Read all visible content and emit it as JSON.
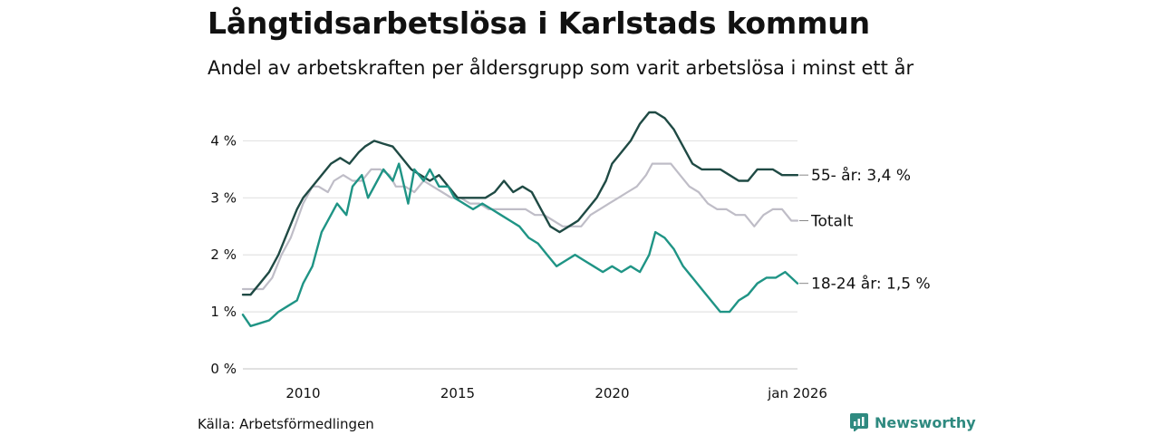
{
  "header": {
    "title": "Långtidsarbetslösa i Karlstads kommun",
    "subtitle": "Andel av arbetskraften per åldersgrupp som varit arbetslösa i minst ett år"
  },
  "footer": {
    "source": "Källa: Arbetsförmedlingen",
    "brand": "Newsworthy",
    "brand_icon": "newsworthy-logo-icon",
    "brand_color": "#2f8a80"
  },
  "chart_data": {
    "type": "line",
    "title": "Långtidsarbetslösa i Karlstads kommun",
    "xlabel": "",
    "ylabel": "",
    "xlim": [
      2008.05,
      2026.0
    ],
    "ylim": [
      0,
      4.5
    ],
    "grid": true,
    "y_ticks": [
      {
        "value": 0,
        "label": "0 %"
      },
      {
        "value": 1,
        "label": "1 %"
      },
      {
        "value": 2,
        "label": "2 %"
      },
      {
        "value": 3,
        "label": "3 %"
      },
      {
        "value": 4,
        "label": "4 %"
      }
    ],
    "x_ticks": [
      {
        "value": 2010,
        "label": "2010"
      },
      {
        "value": 2015,
        "label": "2015"
      },
      {
        "value": 2020,
        "label": "2020"
      },
      {
        "value": 2026,
        "label": "jan 2026"
      }
    ],
    "series": [
      {
        "name": "Totalt",
        "label": "Totalt",
        "color": "#bfbdc7",
        "x": [
          2008.05,
          2008.4,
          2008.7,
          2009.0,
          2009.3,
          2009.6,
          2009.8,
          2010.0,
          2010.3,
          2010.5,
          2010.8,
          2011.0,
          2011.3,
          2011.6,
          2011.9,
          2012.2,
          2012.5,
          2012.8,
          2013.0,
          2013.3,
          2013.6,
          2013.9,
          2014.2,
          2014.5,
          2014.8,
          2015.1,
          2015.4,
          2015.7,
          2016.0,
          2016.3,
          2016.6,
          2016.9,
          2017.2,
          2017.5,
          2017.8,
          2018.1,
          2018.4,
          2018.7,
          2019.0,
          2019.3,
          2019.6,
          2019.9,
          2020.2,
          2020.5,
          2020.8,
          2021.1,
          2021.3,
          2021.6,
          2021.9,
          2022.2,
          2022.5,
          2022.8,
          2023.1,
          2023.4,
          2023.7,
          2024.0,
          2024.3,
          2024.6,
          2024.9,
          2025.2,
          2025.5,
          2025.8,
          2026.0
        ],
        "values": [
          1.4,
          1.4,
          1.4,
          1.6,
          2.0,
          2.3,
          2.6,
          2.9,
          3.2,
          3.2,
          3.1,
          3.3,
          3.4,
          3.3,
          3.3,
          3.5,
          3.5,
          3.4,
          3.2,
          3.2,
          3.1,
          3.3,
          3.2,
          3.1,
          3.0,
          3.0,
          2.9,
          2.9,
          2.8,
          2.8,
          2.8,
          2.8,
          2.8,
          2.7,
          2.7,
          2.6,
          2.5,
          2.5,
          2.5,
          2.7,
          2.8,
          2.9,
          3.0,
          3.1,
          3.2,
          3.4,
          3.6,
          3.6,
          3.6,
          3.4,
          3.2,
          3.1,
          2.9,
          2.8,
          2.8,
          2.7,
          2.7,
          2.5,
          2.7,
          2.8,
          2.8,
          2.6,
          2.6
        ]
      },
      {
        "name": "55- år",
        "label": "55- år: 3,4 %",
        "color": "#1f4a44",
        "x": [
          2008.05,
          2008.3,
          2008.6,
          2008.9,
          2009.2,
          2009.5,
          2009.8,
          2010.0,
          2010.3,
          2010.6,
          2010.9,
          2011.2,
          2011.5,
          2011.8,
          2012.0,
          2012.3,
          2012.6,
          2012.9,
          2013.2,
          2013.5,
          2013.8,
          2014.1,
          2014.4,
          2014.7,
          2015.0,
          2015.3,
          2015.6,
          2015.9,
          2016.2,
          2016.5,
          2016.8,
          2017.1,
          2017.4,
          2017.7,
          2018.0,
          2018.3,
          2018.6,
          2018.9,
          2019.2,
          2019.5,
          2019.8,
          2020.0,
          2020.3,
          2020.6,
          2020.9,
          2021.2,
          2021.4,
          2021.7,
          2022.0,
          2022.3,
          2022.6,
          2022.9,
          2023.2,
          2023.5,
          2023.8,
          2024.1,
          2024.4,
          2024.7,
          2025.0,
          2025.2,
          2025.5,
          2025.8,
          2026.0
        ],
        "values": [
          1.3,
          1.3,
          1.5,
          1.7,
          2.0,
          2.4,
          2.8,
          3.0,
          3.2,
          3.4,
          3.6,
          3.7,
          3.6,
          3.8,
          3.9,
          4.0,
          3.95,
          3.9,
          3.7,
          3.5,
          3.4,
          3.3,
          3.4,
          3.2,
          3.0,
          3.0,
          3.0,
          3.0,
          3.1,
          3.3,
          3.1,
          3.2,
          3.1,
          2.8,
          2.5,
          2.4,
          2.5,
          2.6,
          2.8,
          3.0,
          3.3,
          3.6,
          3.8,
          4.0,
          4.3,
          4.5,
          4.5,
          4.4,
          4.2,
          3.9,
          3.6,
          3.5,
          3.5,
          3.5,
          3.4,
          3.3,
          3.3,
          3.5,
          3.5,
          3.5,
          3.4,
          3.4,
          3.4
        ]
      },
      {
        "name": "18-24 år",
        "label": "18-24 år: 1,5 %",
        "color": "#1f9485",
        "x": [
          2008.05,
          2008.3,
          2008.6,
          2008.9,
          2009.2,
          2009.5,
          2009.8,
          2010.0,
          2010.3,
          2010.6,
          2010.9,
          2011.1,
          2011.4,
          2011.6,
          2011.9,
          2012.1,
          2012.4,
          2012.6,
          2012.9,
          2013.1,
          2013.4,
          2013.6,
          2013.9,
          2014.1,
          2014.4,
          2014.7,
          2014.9,
          2015.2,
          2015.5,
          2015.8,
          2016.1,
          2016.4,
          2016.7,
          2017.0,
          2017.3,
          2017.6,
          2017.9,
          2018.2,
          2018.5,
          2018.8,
          2019.1,
          2019.4,
          2019.7,
          2020.0,
          2020.3,
          2020.6,
          2020.9,
          2021.2,
          2021.4,
          2021.7,
          2022.0,
          2022.3,
          2022.6,
          2022.9,
          2023.2,
          2023.5,
          2023.8,
          2024.1,
          2024.4,
          2024.7,
          2025.0,
          2025.3,
          2025.6,
          2025.8,
          2026.0
        ],
        "values": [
          0.95,
          0.75,
          0.8,
          0.85,
          1.0,
          1.1,
          1.2,
          1.5,
          1.8,
          2.4,
          2.7,
          2.9,
          2.7,
          3.2,
          3.4,
          3.0,
          3.3,
          3.5,
          3.3,
          3.6,
          2.9,
          3.5,
          3.3,
          3.5,
          3.2,
          3.2,
          3.0,
          2.9,
          2.8,
          2.9,
          2.8,
          2.7,
          2.6,
          2.5,
          2.3,
          2.2,
          2.0,
          1.8,
          1.9,
          2.0,
          1.9,
          1.8,
          1.7,
          1.8,
          1.7,
          1.8,
          1.7,
          2.0,
          2.4,
          2.3,
          2.1,
          1.8,
          1.6,
          1.4,
          1.2,
          1.0,
          1.0,
          1.2,
          1.3,
          1.5,
          1.6,
          1.6,
          1.7,
          1.6,
          1.5
        ]
      }
    ]
  }
}
